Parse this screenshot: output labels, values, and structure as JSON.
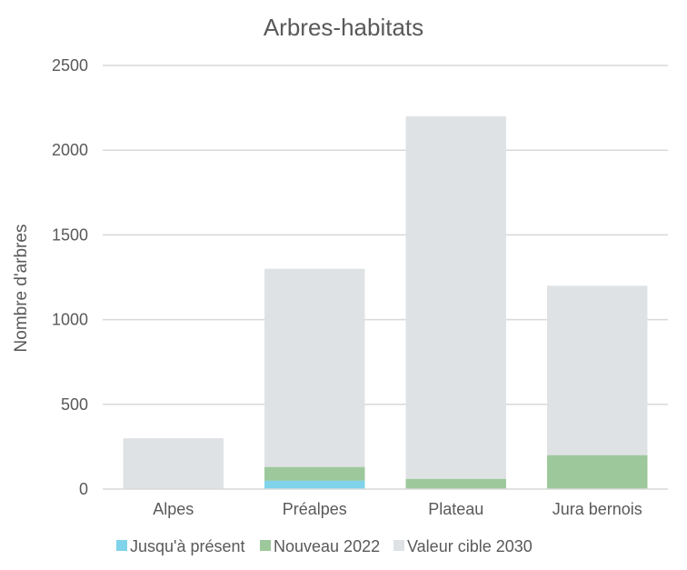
{
  "chart_data": {
    "type": "bar",
    "title": "Arbres-habitats",
    "ylabel": "Nombre d'arbres",
    "xlabel": "",
    "ylim": [
      0,
      2500
    ],
    "yticks": [
      0,
      500,
      1000,
      1500,
      2000,
      2500
    ],
    "grid": true,
    "legend_position": "bottom",
    "categories": [
      "Alpes",
      "Préalpes",
      "Plateau",
      "Jura bernois"
    ],
    "series": [
      {
        "name": "Jusqu'à présent",
        "values": [
          0,
          50,
          0,
          0
        ],
        "color": "#7fd3ea"
      },
      {
        "name": "Nouveau 2022",
        "values": [
          0,
          80,
          60,
          200
        ],
        "color": "#9dc89b"
      },
      {
        "name": "Valeur cible 2030",
        "values": [
          300,
          1300,
          2200,
          1200
        ],
        "color": "#dfe2e5",
        "mode": "total"
      }
    ]
  }
}
